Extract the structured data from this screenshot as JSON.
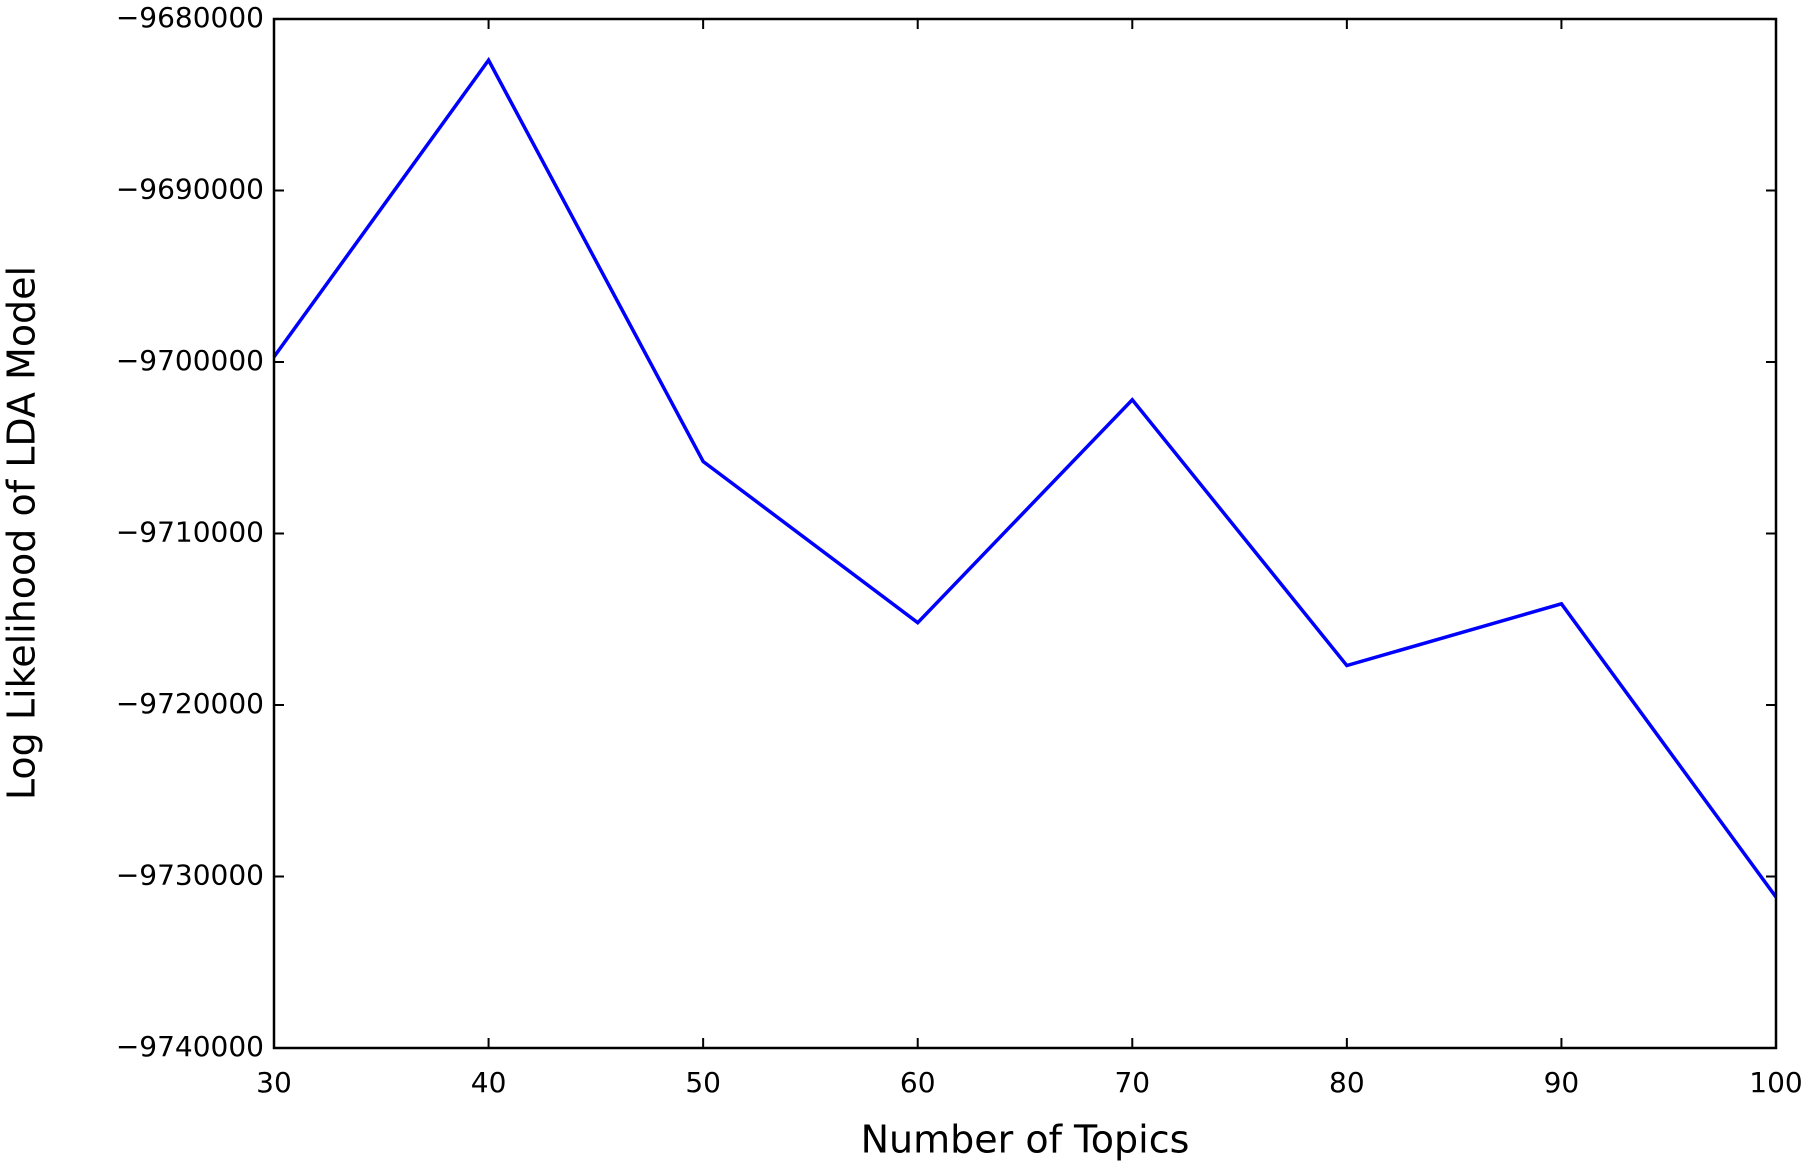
{
  "chart_data": {
    "type": "line",
    "x_label": "Number of Topics",
    "y_label": "Log Likelihood of LDA Model",
    "x": [
      30,
      40,
      50,
      60,
      70,
      80,
      90,
      100
    ],
    "series": [
      {
        "color": "#0000ff",
        "values": [
          -9699700,
          -9682400,
          -9705800,
          -9715200,
          -9702200,
          -9717700,
          -9714100,
          -9731200
        ]
      }
    ],
    "xlim": [
      30,
      100
    ],
    "xticks": [
      30,
      40,
      50,
      60,
      70,
      80,
      90,
      100
    ],
    "ylim": [
      -9740000,
      -9680000
    ],
    "yticks": [
      {
        "value": -9740000,
        "label": "−9740000"
      },
      {
        "value": -9730000,
        "label": "−9730000"
      },
      {
        "value": -9720000,
        "label": "−9720000"
      },
      {
        "value": -9710000,
        "label": "−9710000"
      },
      {
        "value": -9700000,
        "label": "−9700000"
      },
      {
        "value": -9690000,
        "label": "−9690000"
      },
      {
        "value": -9680000,
        "label": "−9680000"
      }
    ],
    "grid": false
  }
}
